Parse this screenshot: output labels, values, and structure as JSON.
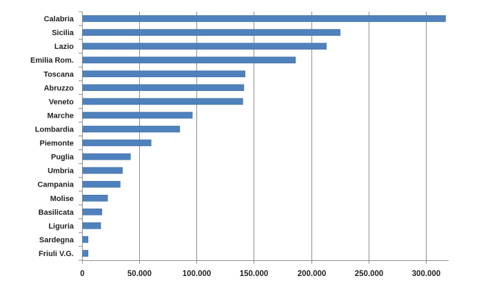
{
  "chart_data": {
    "type": "bar",
    "orientation": "horizontal",
    "title": "",
    "xlabel": "",
    "ylabel": "",
    "categories": [
      "Calabria",
      "Sicilia",
      "Lazio",
      "Emilia Rom.",
      "Toscana",
      "Abruzzo",
      "Veneto",
      "Marche",
      "Lombardia",
      "Piemonte",
      "Puglia",
      "Umbria",
      "Campania",
      "Molise",
      "Basilicata",
      "Liguria",
      "Sardegna",
      "Friuli V.G."
    ],
    "values": [
      317000,
      225000,
      213000,
      186000,
      142000,
      141000,
      140000,
      96000,
      85000,
      60000,
      42000,
      35000,
      33000,
      22000,
      17000,
      16000,
      5000,
      5000
    ],
    "xlim": [
      0,
      320000
    ],
    "ticks": [
      0,
      50000,
      100000,
      150000,
      200000,
      250000,
      300000
    ],
    "tick_labels": [
      "0",
      "50.000",
      "100.000",
      "150.000",
      "200.000",
      "250.000",
      "300.000"
    ],
    "grid": true,
    "legend": "none",
    "colors": {
      "bar": "#4F81BD",
      "bar_edge": "#3C6A9E",
      "grid": "#8C8C8C",
      "axis": "#8C8C8C",
      "text": "#222222"
    }
  }
}
